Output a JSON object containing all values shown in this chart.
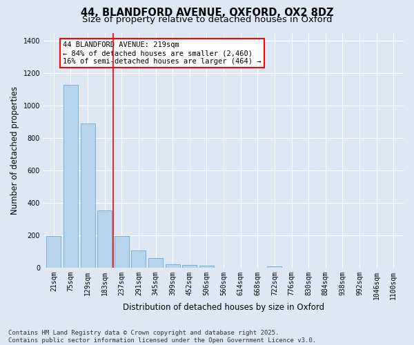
{
  "title_line1": "44, BLANDFORD AVENUE, OXFORD, OX2 8DZ",
  "title_line2": "Size of property relative to detached houses in Oxford",
  "xlabel": "Distribution of detached houses by size in Oxford",
  "ylabel": "Number of detached properties",
  "categories": [
    "21sqm",
    "75sqm",
    "129sqm",
    "183sqm",
    "237sqm",
    "291sqm",
    "345sqm",
    "399sqm",
    "452sqm",
    "506sqm",
    "560sqm",
    "614sqm",
    "668sqm",
    "722sqm",
    "776sqm",
    "830sqm",
    "884sqm",
    "938sqm",
    "992sqm",
    "1046sqm",
    "1100sqm"
  ],
  "values": [
    195,
    1130,
    890,
    355,
    195,
    105,
    60,
    22,
    18,
    12,
    0,
    0,
    0,
    10,
    0,
    0,
    0,
    0,
    0,
    0,
    0
  ],
  "bar_color": "#b8d4ea",
  "bar_edge_color": "#6aaad4",
  "vline_color": "red",
  "vline_x": 3.5,
  "annotation_text": "44 BLANDFORD AVENUE: 219sqm\n← 84% of detached houses are smaller (2,460)\n16% of semi-detached houses are larger (464) →",
  "annotation_box_color": "red",
  "annotation_box_facecolor": "white",
  "ylim": [
    0,
    1450
  ],
  "yticks": [
    0,
    200,
    400,
    600,
    800,
    1000,
    1200,
    1400
  ],
  "bg_color": "#dde8f4",
  "plot_bg_color": "#dde8f4",
  "grid_color": "white",
  "footer_line1": "Contains HM Land Registry data © Crown copyright and database right 2025.",
  "footer_line2": "Contains public sector information licensed under the Open Government Licence v3.0.",
  "title_fontsize": 10.5,
  "subtitle_fontsize": 9.5,
  "tick_fontsize": 7,
  "label_fontsize": 8.5,
  "footer_fontsize": 6.5,
  "ann_fontsize": 7.5
}
